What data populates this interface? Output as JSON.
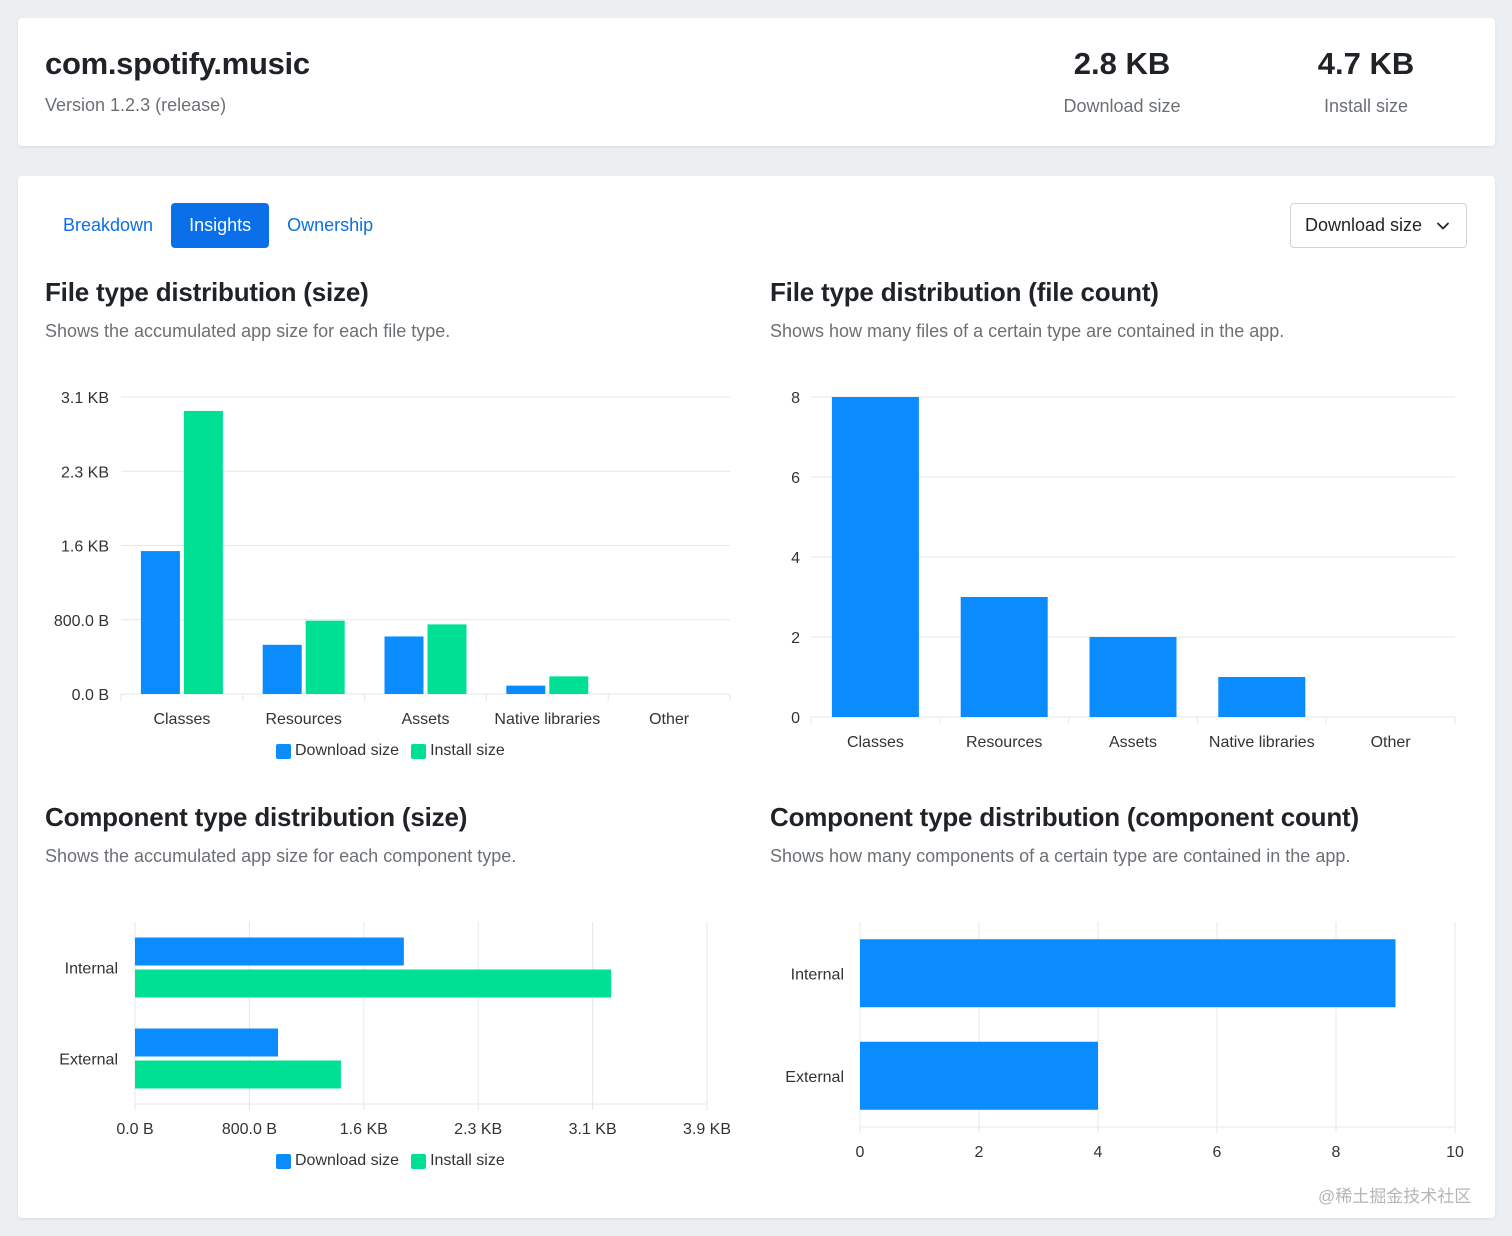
{
  "header": {
    "app_name": "com.spotify.music",
    "version": "Version 1.2.3 (release)",
    "download_size": {
      "value": "2.8 KB",
      "label": "Download size"
    },
    "install_size": {
      "value": "4.7 KB",
      "label": "Install size"
    }
  },
  "tabs": [
    {
      "label": "Breakdown",
      "active": false
    },
    {
      "label": "Insights",
      "active": true
    },
    {
      "label": "Ownership",
      "active": false
    }
  ],
  "dropdown": {
    "selected": "Download size"
  },
  "colors": {
    "download": "#0a8cff",
    "install": "#00e095",
    "accent": "#0a6fe8",
    "grid": "#e4e7ea"
  },
  "sections": {
    "file_size": {
      "title": "File type distribution (size)",
      "desc": "Shows the accumulated app size for each file type."
    },
    "file_count": {
      "title": "File type distribution (file count)",
      "desc": "Shows how many files of a certain type are contained in the app."
    },
    "comp_size": {
      "title": "Component type distribution (size)",
      "desc": "Shows the accumulated app size for each component type."
    },
    "comp_count": {
      "title": "Component type distribution (component count)",
      "desc": "Shows how many components of a certain type are contained in the app."
    }
  },
  "legend": {
    "download": "Download size",
    "install": "Install size"
  },
  "watermark": "@稀土掘金技术社区",
  "chart_data": [
    {
      "id": "file_size",
      "type": "bar",
      "categories": [
        "Classes",
        "Resources",
        "Assets",
        "Native libraries",
        "Other"
      ],
      "series": [
        {
          "name": "Download size",
          "values": [
            1.54,
            0.53,
            0.62,
            0.09,
            0
          ]
        },
        {
          "name": "Install size",
          "values": [
            3.05,
            0.79,
            0.75,
            0.19,
            0
          ]
        }
      ],
      "unit": "KB",
      "ylim": [
        0,
        3.2
      ],
      "yticks": [
        0,
        0.8,
        1.6,
        2.4,
        3.2
      ],
      "ytick_labels": [
        "0.0 B",
        "800.0 B",
        "1.6 KB",
        "2.3 KB",
        "3.1 KB"
      ],
      "grid": true,
      "legend": "bottom-center"
    },
    {
      "id": "file_count",
      "type": "bar",
      "categories": [
        "Classes",
        "Resources",
        "Assets",
        "Native libraries",
        "Other"
      ],
      "values": [
        8,
        3,
        2,
        1,
        0
      ],
      "ylim": [
        0,
        8
      ],
      "yticks": [
        0,
        2,
        4,
        6,
        8
      ],
      "ytick_labels": [
        "0",
        "2",
        "4",
        "6",
        "8"
      ],
      "grid": true
    },
    {
      "id": "comp_size",
      "type": "bar",
      "orientation": "horizontal",
      "categories": [
        "Internal",
        "External"
      ],
      "series": [
        {
          "name": "Download size",
          "values": [
            1.88,
            1.0
          ]
        },
        {
          "name": "Install size",
          "values": [
            3.33,
            1.44
          ]
        }
      ],
      "unit": "KB",
      "xlim": [
        0,
        4.0
      ],
      "xticks": [
        0,
        0.8,
        1.6,
        2.4,
        3.2,
        4.0
      ],
      "xtick_labels": [
        "0.0 B",
        "800.0 B",
        "1.6 KB",
        "2.3 KB",
        "3.1 KB",
        "3.9 KB"
      ],
      "grid": true,
      "legend": "bottom-center"
    },
    {
      "id": "comp_count",
      "type": "bar",
      "orientation": "horizontal",
      "categories": [
        "Internal",
        "External"
      ],
      "values": [
        9,
        4
      ],
      "xlim": [
        0,
        10
      ],
      "xticks": [
        0,
        2,
        4,
        6,
        8,
        10
      ],
      "xtick_labels": [
        "0",
        "2",
        "4",
        "6",
        "8",
        "10"
      ],
      "grid": true
    }
  ]
}
